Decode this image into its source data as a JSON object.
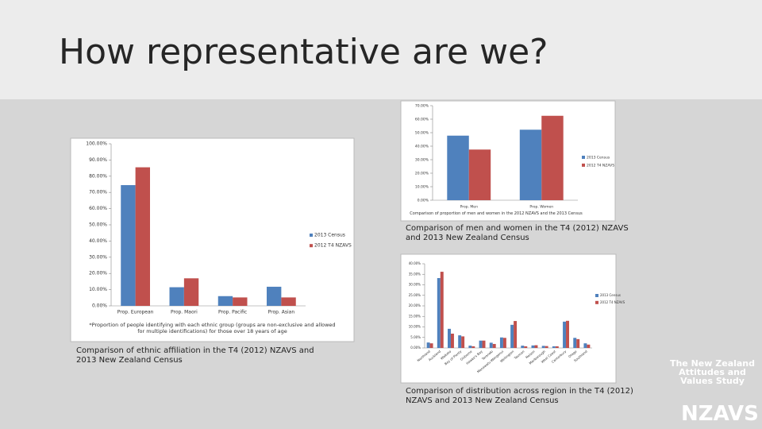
{
  "slide": {
    "title": "How representative are we?",
    "captions": [
      "Comparison of ethnic affiliation in the T4 (2012) NZAVS and 2013 New Zealand Census",
      "Comparison of men and women in the T4 (2012) NZAVS and 2013 New Zealand Census",
      "Comparison of distribution across region in the T4 (2012) NZAVS and 2013 New Zealand Census"
    ],
    "logo": {
      "text": "The New Zealand Attitudes and Values Study",
      "short": "NZAVS"
    }
  },
  "chart_data": [
    {
      "type": "bar",
      "footnote": "*Proportion of people identifying with each ethnic group (groups are non-exclusive and allowed for multiple identifications) for those over 18 years of age",
      "categories": [
        "Prop. European",
        "Prop. Maori",
        "Prop. Pacific",
        "Prop. Asian"
      ],
      "series": [
        {
          "name": "2013 Census",
          "color": "#4f81bd",
          "values": [
            74.5,
            11.5,
            6.0,
            11.8
          ]
        },
        {
          "name": "2012 T4 NZAVS",
          "color": "#c0504d",
          "values": [
            85.5,
            17.0,
            5.2,
            5.2
          ]
        }
      ],
      "ylim": [
        0,
        100
      ],
      "yticks": [
        {
          "value": 0,
          "label": "0.00%"
        },
        {
          "value": 10,
          "label": "10.00%"
        },
        {
          "value": 20,
          "label": "20.00%"
        },
        {
          "value": 30,
          "label": "30.00%"
        },
        {
          "value": 40,
          "label": "40.00%"
        },
        {
          "value": 50,
          "label": "50.00%"
        },
        {
          "value": 60,
          "label": "60.00%"
        },
        {
          "value": 70,
          "label": "70.00%"
        },
        {
          "value": 80,
          "label": "80.00%"
        },
        {
          "value": 90,
          "label": "90.00%"
        },
        {
          "value": 100,
          "label": "100.00%"
        }
      ],
      "legend": "right"
    },
    {
      "type": "bar",
      "footnote": "Comparison of proportion of men and women in the 2012 NZAVS and the 2013 Census",
      "categories": [
        "Prop. Men",
        "Prop. Women"
      ],
      "series": [
        {
          "name": "2013 Census",
          "color": "#4f81bd",
          "values": [
            47.8,
            52.2
          ]
        },
        {
          "name": "2012 T4 NZAVS",
          "color": "#c0504d",
          "values": [
            37.5,
            62.5
          ]
        }
      ],
      "ylim": [
        0,
        70
      ],
      "yticks": [
        {
          "value": 0,
          "label": "0.00%"
        },
        {
          "value": 10,
          "label": "10.00%"
        },
        {
          "value": 20,
          "label": "20.00%"
        },
        {
          "value": 30,
          "label": "30.00%"
        },
        {
          "value": 40,
          "label": "40.00%"
        },
        {
          "value": 50,
          "label": "50.00%"
        },
        {
          "value": 60,
          "label": "60.00%"
        },
        {
          "value": 70,
          "label": "70.00%"
        }
      ],
      "legend": "right"
    },
    {
      "type": "bar",
      "categories": [
        "Northland",
        "Auckland",
        "Waikato",
        "Bay of Plenty",
        "Gisborne",
        "Hawke's Bay",
        "Taranaki",
        "Manawatu-Wanganui",
        "Wellington",
        "Tasman",
        "Nelson",
        "Marlborough",
        "West Coast",
        "Canterbury",
        "Otago",
        "Southland"
      ],
      "series": [
        {
          "name": "2013 Census",
          "color": "#4f81bd",
          "values": [
            2.6,
            33.2,
            9.1,
            6.0,
            1.1,
            3.5,
            2.5,
            5.0,
            11.0,
            1.1,
            1.2,
            1.0,
            0.8,
            12.5,
            4.8,
            2.2
          ]
        },
        {
          "name": "2012 T4 NZAVS",
          "color": "#c0504d",
          "values": [
            2.2,
            36.2,
            6.8,
            5.5,
            0.8,
            3.5,
            1.9,
            4.8,
            12.8,
            0.8,
            1.3,
            0.9,
            0.8,
            12.9,
            4.2,
            1.6
          ]
        }
      ],
      "ylim": [
        0,
        40
      ],
      "yticks": [
        {
          "value": 0,
          "label": "0.00%"
        },
        {
          "value": 5,
          "label": "5.00%"
        },
        {
          "value": 10,
          "label": "10.00%"
        },
        {
          "value": 15,
          "label": "15.00%"
        },
        {
          "value": 20,
          "label": "20.00%"
        },
        {
          "value": 25,
          "label": "25.00%"
        },
        {
          "value": 30,
          "label": "30.00%"
        },
        {
          "value": 35,
          "label": "35.00%"
        },
        {
          "value": 40,
          "label": "40.00%"
        }
      ],
      "legend": "right"
    }
  ]
}
